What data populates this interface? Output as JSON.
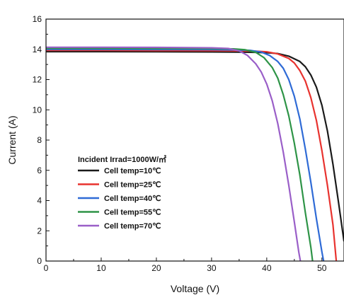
{
  "chart_data": {
    "type": "line",
    "xlabel": "Voltage (V)",
    "ylabel": "Current (A)",
    "xlim": [
      0,
      54
    ],
    "ylim": [
      0,
      16
    ],
    "x_ticks": [
      0,
      10,
      20,
      30,
      40,
      50
    ],
    "y_ticks": [
      0,
      2,
      4,
      6,
      8,
      10,
      12,
      14,
      16
    ],
    "grid": false,
    "legend_position": "bottom-left",
    "legend_title": "Incident Irrad=1000W/㎡",
    "series": [
      {
        "name": "Cell temp=10℃",
        "color": "#1a1a1a",
        "points": [
          [
            0,
            13.85
          ],
          [
            10,
            13.85
          ],
          [
            20,
            13.84
          ],
          [
            30,
            13.83
          ],
          [
            35,
            13.82
          ],
          [
            38,
            13.8
          ],
          [
            40,
            13.78
          ],
          [
            42,
            13.72
          ],
          [
            44,
            13.55
          ],
          [
            46,
            13.2
          ],
          [
            47,
            12.85
          ],
          [
            48,
            12.3
          ],
          [
            49,
            11.5
          ],
          [
            50,
            10.3
          ],
          [
            51,
            8.6
          ],
          [
            52,
            6.4
          ],
          [
            53,
            3.9
          ],
          [
            54,
            1.3
          ]
        ]
      },
      {
        "name": "Cell temp=25℃",
        "color": "#e8332f",
        "points": [
          [
            0,
            13.93
          ],
          [
            10,
            13.93
          ],
          [
            20,
            13.92
          ],
          [
            30,
            13.91
          ],
          [
            35,
            13.9
          ],
          [
            38,
            13.88
          ],
          [
            40,
            13.84
          ],
          [
            42,
            13.7
          ],
          [
            44,
            13.4
          ],
          [
            45,
            13.1
          ],
          [
            46,
            12.6
          ],
          [
            47,
            11.9
          ],
          [
            48,
            10.8
          ],
          [
            49,
            9.3
          ],
          [
            50,
            7.3
          ],
          [
            51,
            5.0
          ],
          [
            52,
            2.4
          ],
          [
            52.6,
            0.0
          ]
        ]
      },
      {
        "name": "Cell temp=40℃",
        "color": "#2f6bd6",
        "points": [
          [
            0,
            14.0
          ],
          [
            10,
            14.0
          ],
          [
            20,
            13.99
          ],
          [
            30,
            13.98
          ],
          [
            35,
            13.96
          ],
          [
            37,
            13.93
          ],
          [
            39,
            13.82
          ],
          [
            40.5,
            13.6
          ],
          [
            42,
            13.2
          ],
          [
            43,
            12.75
          ],
          [
            44,
            12.0
          ],
          [
            45,
            10.9
          ],
          [
            46,
            9.4
          ],
          [
            47,
            7.4
          ],
          [
            48,
            5.2
          ],
          [
            49,
            2.8
          ],
          [
            50,
            0.6
          ],
          [
            50.3,
            0.0
          ]
        ]
      },
      {
        "name": "Cell temp=55℃",
        "color": "#2e9447",
        "points": [
          [
            0,
            14.07
          ],
          [
            10,
            14.07
          ],
          [
            20,
            14.06
          ],
          [
            30,
            14.05
          ],
          [
            34,
            14.03
          ],
          [
            36,
            13.98
          ],
          [
            38,
            13.8
          ],
          [
            39.5,
            13.45
          ],
          [
            41,
            12.8
          ],
          [
            42,
            12.1
          ],
          [
            43,
            11.0
          ],
          [
            44,
            9.6
          ],
          [
            45,
            7.8
          ],
          [
            46,
            5.7
          ],
          [
            47,
            3.2
          ],
          [
            48,
            0.9
          ],
          [
            48.3,
            0.0
          ]
        ]
      },
      {
        "name": "Cell temp=70℃",
        "color": "#9a5fc8",
        "points": [
          [
            0,
            14.14
          ],
          [
            10,
            14.14
          ],
          [
            20,
            14.13
          ],
          [
            30,
            14.1
          ],
          [
            33,
            14.06
          ],
          [
            35,
            13.9
          ],
          [
            36.5,
            13.6
          ],
          [
            38,
            13.05
          ],
          [
            39,
            12.5
          ],
          [
            40,
            11.7
          ],
          [
            41,
            10.6
          ],
          [
            42,
            9.1
          ],
          [
            43,
            7.2
          ],
          [
            44,
            5.0
          ],
          [
            45,
            2.6
          ],
          [
            45.8,
            0.6
          ],
          [
            46.1,
            0.0
          ]
        ]
      }
    ]
  }
}
